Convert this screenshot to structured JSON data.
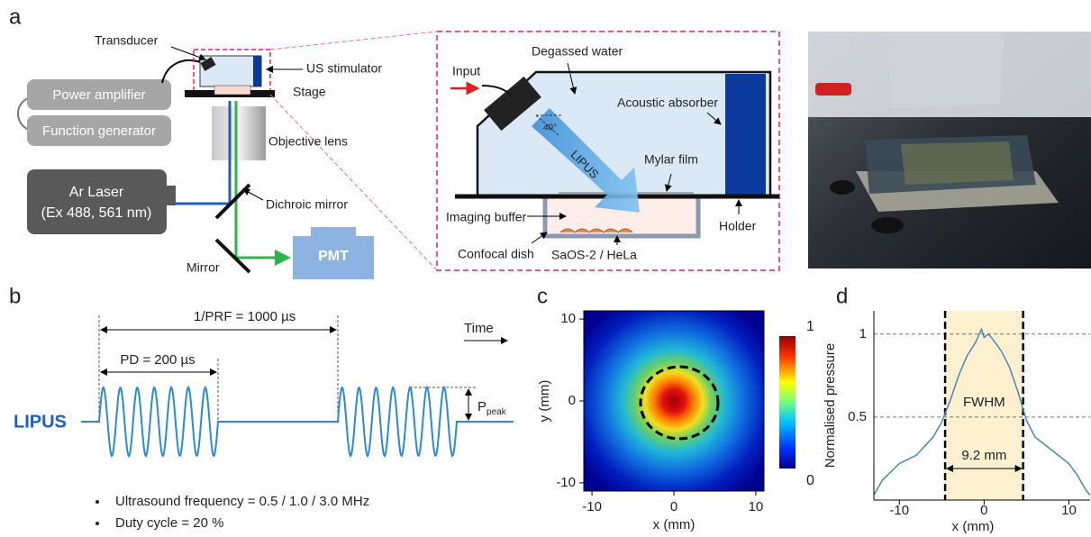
{
  "panel_labels": [
    "a",
    "b",
    "c",
    "d"
  ],
  "setup": {
    "transducer": "Transducer",
    "us_stimulator": "US stimulator",
    "stage": "Stage",
    "power_amplifier": "Power amplifier",
    "function_generator": "Function generator",
    "objective_lens": "Objective lens",
    "laser_line1": "Ar Laser",
    "laser_line2": "(Ex 488, 561 nm)",
    "dichroic_mirror": "Dichroic mirror",
    "mirror": "Mirror",
    "pmt": "PMT"
  },
  "inset": {
    "input": "Input",
    "degassed_water": "Degassed water",
    "acoustic_absorber": "Acoustic absorber",
    "angle": "40°",
    "lipus": "LIPUS",
    "mylar_film": "Mylar film",
    "imaging_buffer": "Imaging buffer",
    "holder": "Holder",
    "confocal_dish": "Confocal dish",
    "cells": "SaOS-2 / HeLa"
  },
  "waveform": {
    "prf": "1/PRF = 1000 µs",
    "pd": "PD = 200 µs",
    "time": "Time",
    "p": "P",
    "p_sub": "peak",
    "lipus": "LIPUS",
    "bullets": [
      "Ultrasound frequency = 0.5 / 1.0 / 3.0 MHz",
      "Duty cycle = 20 %"
    ]
  },
  "chart_data": [
    {
      "type": "heatmap",
      "xlabel": "x (mm)",
      "ylabel": "y (mm)",
      "xlim": [
        -11,
        11
      ],
      "ylim": [
        -11,
        11
      ],
      "xticks": [
        -10,
        0,
        10
      ],
      "yticks": [
        -10,
        0,
        10
      ],
      "clim": [
        0,
        1
      ],
      "cticks": [
        0,
        1
      ]
    },
    {
      "type": "line",
      "ylabel": "Normalised pressure",
      "xlabel": "x (mm)",
      "xlim": [
        -13,
        12.5
      ],
      "ylim": [
        0,
        1.14
      ],
      "xticks": [
        -10,
        0,
        10
      ],
      "yticks": [
        0.5,
        1
      ],
      "color": "#4a86b8",
      "band": [
        -4.6,
        4.6
      ],
      "band_label": "FWHM",
      "width_label": "9.2 mm",
      "x": [
        -13,
        -12,
        -10,
        -8,
        -6,
        -5,
        -4,
        -3,
        -2,
        -1,
        -0.3,
        0,
        0.5,
        1,
        2,
        3,
        4,
        5,
        6,
        8,
        10,
        11,
        12,
        12.5
      ],
      "values": [
        0.03,
        0.12,
        0.22,
        0.27,
        0.38,
        0.47,
        0.6,
        0.75,
        0.87,
        0.95,
        1.03,
        0.98,
        1.0,
        0.97,
        0.9,
        0.8,
        0.65,
        0.48,
        0.38,
        0.3,
        0.22,
        0.15,
        0.06,
        0.03
      ]
    }
  ]
}
